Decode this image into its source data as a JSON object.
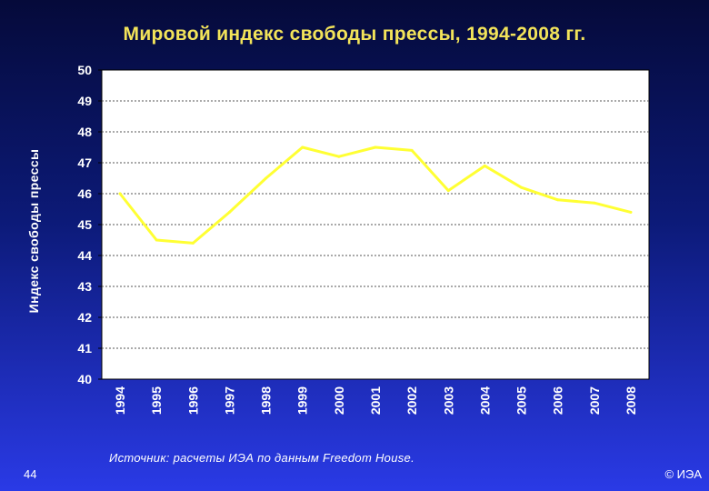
{
  "chart_data": {
    "type": "line",
    "title": "Мировой индекс свободы прессы, 1994-2008 гг.",
    "xlabel": "",
    "ylabel": "Индекс свободы прессы",
    "categories": [
      "1994",
      "1995",
      "1996",
      "1997",
      "1998",
      "1999",
      "2000",
      "2001",
      "2002",
      "2003",
      "2004",
      "2005",
      "2006",
      "2007",
      "2008"
    ],
    "series": [
      {
        "values": [
          46.0,
          44.5,
          44.4,
          45.4,
          46.5,
          47.5,
          47.2,
          47.5,
          47.4,
          46.1,
          46.9,
          46.2,
          45.8,
          45.7,
          45.4
        ]
      }
    ],
    "ylim": [
      40,
      50
    ],
    "yticks": [
      40,
      41,
      42,
      43,
      44,
      45,
      46,
      47,
      48,
      49,
      50
    ],
    "grid": true,
    "legend": "none",
    "colors": {
      "line": "#ffff33",
      "plot_bg": "#ffffff",
      "grid": "#555555",
      "title": "#f2e35a",
      "axis_text": "#ffffff"
    }
  },
  "footer": {
    "source": "Источник: расчеты ИЭА по данным Freedom House.",
    "page_number": "44",
    "copyright": "© ИЭА"
  }
}
